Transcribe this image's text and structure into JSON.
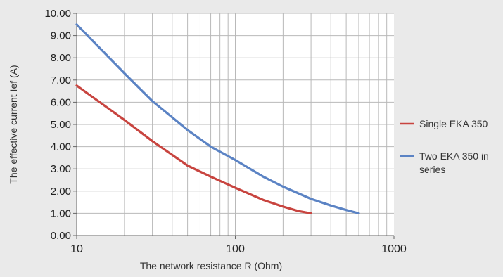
{
  "chart_data": {
    "type": "line",
    "title": "",
    "xlabel": "The network resistance R (Ohm)",
    "ylabel": "The effective current  Ief (A)",
    "xscale": "log",
    "xlim": [
      10,
      1000
    ],
    "ylim": [
      0,
      10
    ],
    "grid": true,
    "legend_position": "right",
    "x_ticks": [
      "10",
      "100",
      "1000"
    ],
    "y_ticks": [
      "0.00",
      "1.00",
      "2.00",
      "3.00",
      "4.00",
      "5.00",
      "6.00",
      "7.00",
      "8.00",
      "9.00",
      "10.00"
    ],
    "series": [
      {
        "name": "Single EKA 350",
        "color": "#c8443f",
        "x": [
          10,
          20,
          30,
          50,
          70,
          100,
          150,
          200,
          250,
          300
        ],
        "y": [
          6.75,
          5.2,
          4.25,
          3.15,
          2.65,
          2.15,
          1.6,
          1.3,
          1.1,
          1.0
        ]
      },
      {
        "name": "Two EKA 350 in series",
        "color": "#5b83c4",
        "x": [
          10,
          20,
          30,
          50,
          70,
          100,
          150,
          200,
          300,
          400,
          500,
          600
        ],
        "y": [
          9.5,
          7.3,
          6.05,
          4.75,
          4.0,
          3.4,
          2.65,
          2.2,
          1.65,
          1.35,
          1.15,
          1.0
        ]
      }
    ]
  }
}
